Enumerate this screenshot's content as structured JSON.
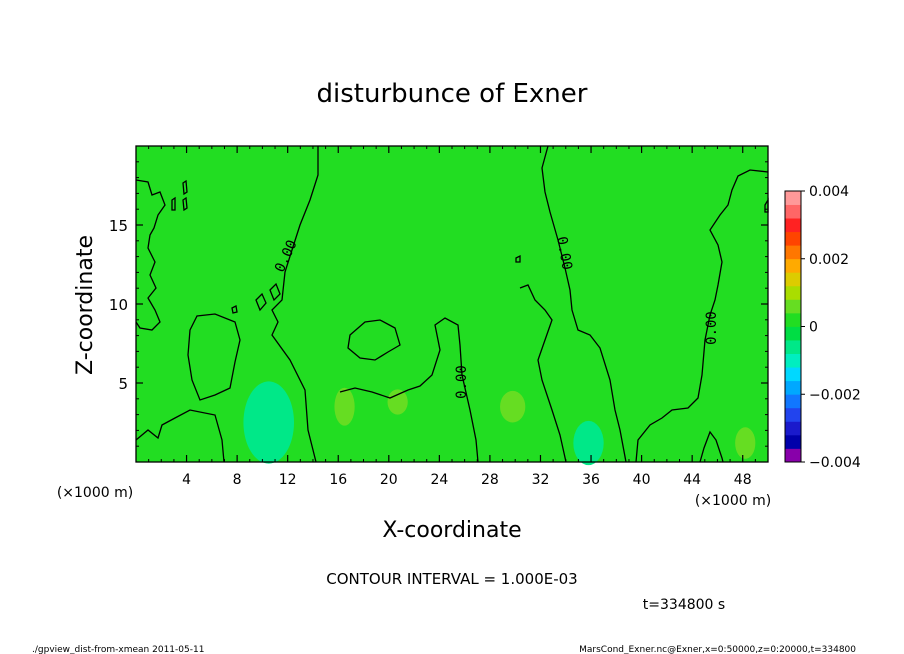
{
  "chart_data": {
    "type": "heatmap",
    "title": "disturbunce of Exner",
    "xlabel": "X-coordinate",
    "ylabel": "Z-coordinate",
    "x_unit": "(×1000 m)",
    "x_unit_bottom": "(×1000 m)",
    "xlim": [
      0,
      50
    ],
    "ylim": [
      0,
      20
    ],
    "x_ticks": [
      4,
      8,
      12,
      16,
      20,
      24,
      28,
      32,
      36,
      40,
      44,
      48
    ],
    "y_ticks": [
      5,
      10,
      15
    ],
    "contour_label": "0.00",
    "contour_interval_text": "CONTOUR INTERVAL = 1.000E-03",
    "time_text": "t=334800 s",
    "colorbar": {
      "min": -0.004,
      "max": 0.004,
      "tick_values": [
        0.004,
        0.002,
        0,
        -0.002,
        -0.004
      ],
      "tick_labels": [
        "0.004",
        "0.002",
        "0",
        "−0.002",
        "−0.004"
      ],
      "colors": [
        "#8800aa",
        "#0000aa",
        "#1a1acc",
        "#2244ee",
        "#1177ff",
        "#00a8ff",
        "#00d8ff",
        "#00eec0",
        "#00e888",
        "#00dd44",
        "#22dd22",
        "#66dd22",
        "#aadd00",
        "#ddcc00",
        "#ffaa00",
        "#ff7700",
        "#ff4400",
        "#ff2222",
        "#ff6666",
        "#ff9999"
      ]
    },
    "base_value": 0.0003,
    "blobs": [
      {
        "cx": 10.5,
        "cz": 2.5,
        "rx": 2.0,
        "rz": 2.6,
        "value": -0.0006
      },
      {
        "cx": 35.8,
        "cz": 1.2,
        "rx": 1.2,
        "rz": 1.4,
        "value": -0.0005
      },
      {
        "cx": 16.5,
        "cz": 3.5,
        "rx": 0.8,
        "rz": 1.2,
        "value": 0.0007
      },
      {
        "cx": 20.7,
        "cz": 3.8,
        "rx": 0.8,
        "rz": 0.8,
        "value": 0.0007
      },
      {
        "cx": 29.8,
        "cz": 3.5,
        "rx": 1.0,
        "rz": 1.0,
        "value": 0.0007
      },
      {
        "cx": 48.2,
        "cz": 1.2,
        "rx": 0.8,
        "rz": 1.0,
        "value": 0.0007
      }
    ]
  },
  "footer": {
    "left": "./gpview_dist-from-xmean  2011-05-11",
    "right": "MarsCond_Exner.nc@Exner,x=0:50000,z=0:20000,t=334800"
  }
}
